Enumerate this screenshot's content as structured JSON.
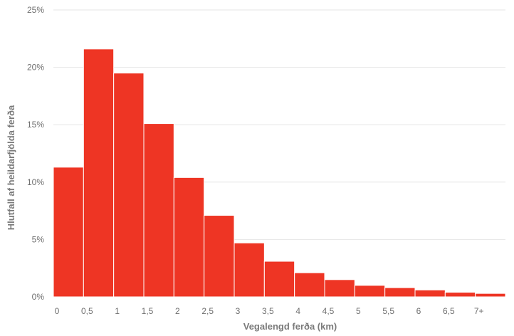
{
  "chart_data": {
    "type": "bar",
    "title": "",
    "xlabel": "Vegalengd ferða (km)",
    "ylabel": "Hlutfall af heildarfjölda ferða",
    "x_tick_labels": [
      "0",
      "0,5",
      "1",
      "1,5",
      "2",
      "2,5",
      "3",
      "3,5",
      "4",
      "4,5",
      "5",
      "5,5",
      "6",
      "6,5",
      "7+"
    ],
    "y_tick_labels": [
      "0%",
      "5%",
      "10%",
      "15%",
      "20%",
      "25%"
    ],
    "ylim": [
      0,
      25
    ],
    "grid": true,
    "bins": [
      {
        "from": 0,
        "to": 0.5,
        "value": 11.3
      },
      {
        "from": 0.5,
        "to": 1,
        "value": 21.6
      },
      {
        "from": 1,
        "to": 1.5,
        "value": 19.5
      },
      {
        "from": 1.5,
        "to": 2,
        "value": 15.1
      },
      {
        "from": 2,
        "to": 2.5,
        "value": 10.4
      },
      {
        "from": 2.5,
        "to": 3,
        "value": 7.1
      },
      {
        "from": 3,
        "to": 3.5,
        "value": 4.7
      },
      {
        "from": 3.5,
        "to": 4,
        "value": 3.1
      },
      {
        "from": 4,
        "to": 4.5,
        "value": 2.1
      },
      {
        "from": 4.5,
        "to": 5,
        "value": 1.5
      },
      {
        "from": 5,
        "to": 5.5,
        "value": 1.0
      },
      {
        "from": 5.5,
        "to": 6,
        "value": 0.8
      },
      {
        "from": 6,
        "to": 6.5,
        "value": 0.6
      },
      {
        "from": 6.5,
        "to": 7,
        "value": 0.4
      },
      {
        "from": 7,
        "to": 7.5,
        "value": 0.3
      }
    ],
    "bar_color": "#ee3524",
    "grid_color": "#e6e6e6",
    "text_color": "#6f6f6f"
  }
}
